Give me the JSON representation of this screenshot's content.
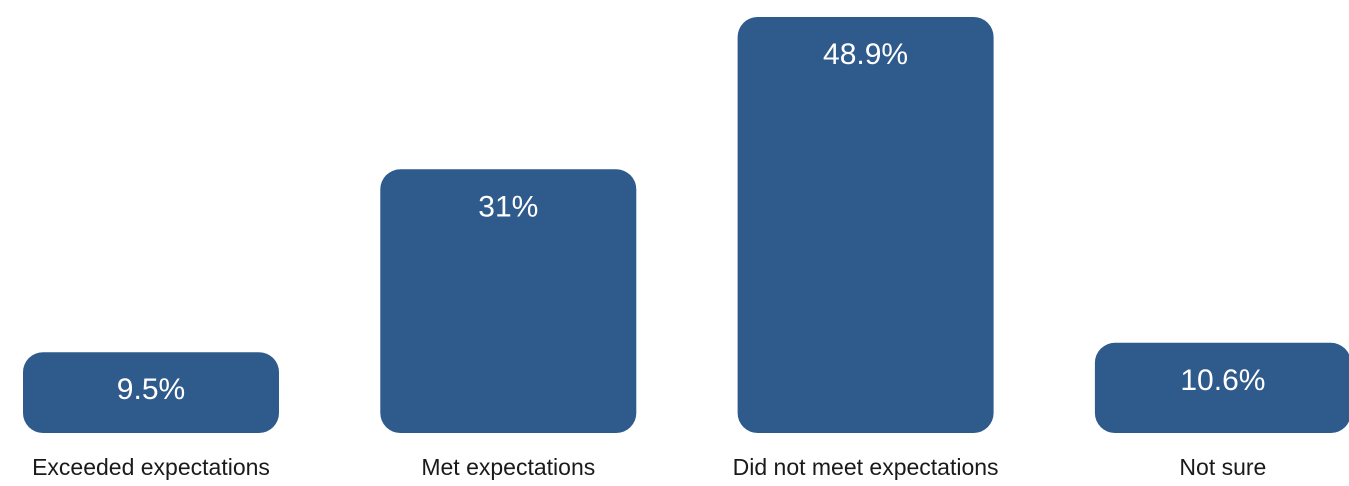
{
  "chart_data": {
    "type": "bar",
    "categories": [
      "Exceeded expectations",
      "Met expectations",
      "Did not meet expectations",
      "Not sure"
    ],
    "values": [
      9.5,
      31,
      48.9,
      10.6
    ],
    "data_labels": [
      "9.5%",
      "31%",
      "48.9%",
      "10.6%"
    ],
    "title": "",
    "xlabel": "",
    "ylabel": "",
    "ylim": [
      0,
      48.9
    ],
    "grid": false,
    "legend": "none",
    "colors": {
      "bar": "#2f5a8c",
      "bar_label": "#ffffff",
      "category_label": "#1a1a1a"
    }
  }
}
